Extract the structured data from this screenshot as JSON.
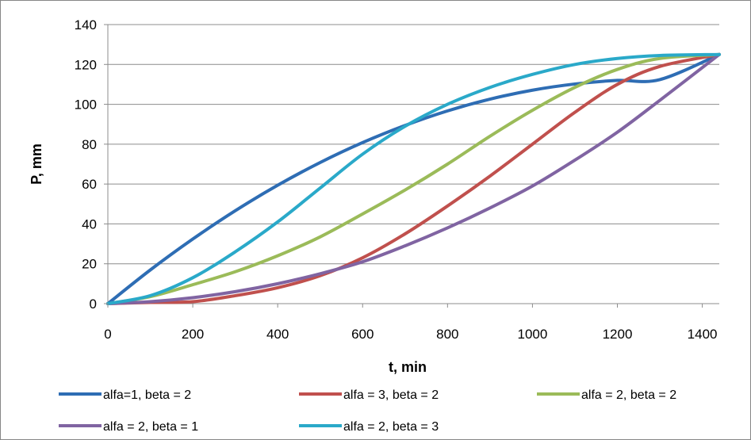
{
  "chart_data": {
    "type": "line",
    "title": "",
    "xlabel": "t, min",
    "ylabel": "P, mm",
    "xlim": [
      0,
      1440
    ],
    "ylim": [
      0,
      140
    ],
    "x_ticks": [
      0,
      200,
      400,
      600,
      800,
      1000,
      1200,
      1400
    ],
    "y_ticks": [
      0,
      20,
      40,
      60,
      80,
      100,
      120,
      140
    ],
    "grid": "horizontal",
    "legend_position": "bottom",
    "series": [
      {
        "name": "alfa=1, beta = 2",
        "color": "#2E6DB4",
        "x": [
          0,
          100,
          200,
          300,
          400,
          500,
          600,
          700,
          800,
          900,
          1000,
          1100,
          1200,
          1300,
          1440
        ],
        "y": [
          0,
          16.9,
          32.4,
          46.6,
          59.4,
          70.8,
          80.8,
          89.4,
          96.7,
          102.6,
          107.1,
          110.2,
          112.0,
          112.4,
          125
        ]
      },
      {
        "name": "alfa = 3, beta = 2",
        "color": "#C0504D",
        "x": [
          0,
          100,
          200,
          300,
          400,
          500,
          600,
          700,
          800,
          900,
          1000,
          1100,
          1200,
          1300,
          1440
        ],
        "y": [
          0,
          0.6,
          1.0,
          4.0,
          8.0,
          14.0,
          23.0,
          35.0,
          49.0,
          64.0,
          80.0,
          96.0,
          110.0,
          119.0,
          125
        ]
      },
      {
        "name": "alfa = 2, beta = 2",
        "color": "#9BBB59",
        "x": [
          0,
          100,
          200,
          300,
          400,
          500,
          600,
          700,
          800,
          900,
          1000,
          1100,
          1200,
          1300,
          1440
        ],
        "y": [
          0,
          3.5,
          9.5,
          16.0,
          24.0,
          33.5,
          45.0,
          57.0,
          70.0,
          84.0,
          97.0,
          108.5,
          117.5,
          123.0,
          125
        ]
      },
      {
        "name": "alfa = 2, beta = 1",
        "color": "#8064A2",
        "x": [
          0,
          100,
          200,
          300,
          400,
          500,
          600,
          700,
          800,
          900,
          1000,
          1100,
          1200,
          1300,
          1440
        ],
        "y": [
          0,
          1.0,
          3.0,
          6.0,
          10.0,
          15.0,
          21.0,
          29.0,
          38.0,
          48.0,
          59.0,
          72.0,
          86.0,
          102.0,
          125
        ]
      },
      {
        "name": "alfa = 2, beta = 3",
        "color": "#2AA9C9",
        "x": [
          0,
          100,
          200,
          300,
          400,
          500,
          600,
          700,
          800,
          900,
          1000,
          1100,
          1200,
          1300,
          1440
        ],
        "y": [
          0,
          4.0,
          13.0,
          26.0,
          41.0,
          58.0,
          75.0,
          89.0,
          100.0,
          108.5,
          115.0,
          120.0,
          123.0,
          124.5,
          125
        ]
      }
    ]
  }
}
